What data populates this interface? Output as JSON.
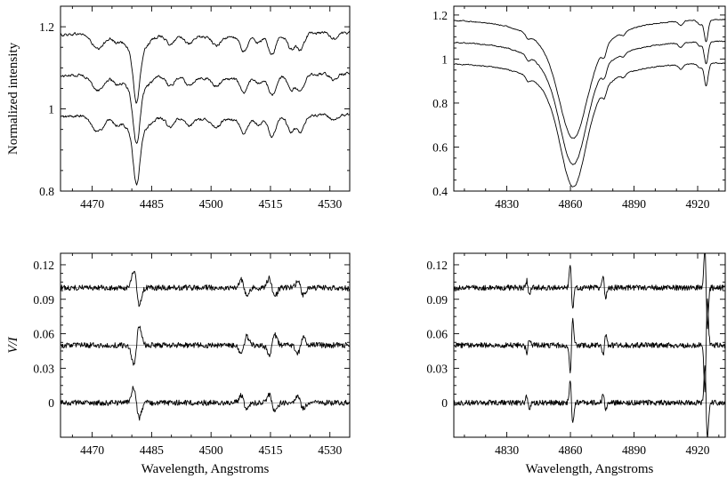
{
  "chart_data": [
    {
      "type": "line",
      "panel": "top-left",
      "xlabel": "",
      "ylabel": "Normalized intensity",
      "xlim": [
        4462,
        4535
      ],
      "ylim": [
        0.8,
        1.25
      ],
      "xticks": [
        4470,
        4485,
        4500,
        4515,
        4530
      ],
      "yticks": [
        0.8,
        1,
        1.2
      ],
      "xtick_labels": [
        "4470",
        "4485",
        "4500",
        "4515",
        "4530"
      ],
      "ytick_labels": [
        "0.8",
        "1",
        "1.2"
      ],
      "offsets": [
        1.18,
        1.08,
        0.98
      ],
      "continuum_slope": 0.006,
      "noise": 0.006,
      "lines": [
        {
          "c": 4481.2,
          "d": 0.12,
          "w": 0.8
        },
        {
          "c": 4481.2,
          "d": 0.05,
          "w": 2.6
        },
        {
          "c": 4471.5,
          "d": 0.04,
          "w": 1.6
        },
        {
          "c": 4476.0,
          "d": 0.018,
          "w": 1.0
        },
        {
          "c": 4489.7,
          "d": 0.025,
          "w": 1.0
        },
        {
          "c": 4494.5,
          "d": 0.02,
          "w": 1.0
        },
        {
          "c": 4501.3,
          "d": 0.02,
          "w": 1.0
        },
        {
          "c": 4508.3,
          "d": 0.035,
          "w": 0.9
        },
        {
          "c": 4512.0,
          "d": 0.015,
          "w": 0.8
        },
        {
          "c": 4515.4,
          "d": 0.045,
          "w": 0.9
        },
        {
          "c": 4520.2,
          "d": 0.035,
          "w": 0.9
        },
        {
          "c": 4522.6,
          "d": 0.04,
          "w": 0.9
        },
        {
          "c": 4531.0,
          "d": 0.015,
          "w": 0.9
        }
      ]
    },
    {
      "type": "line",
      "panel": "top-right",
      "xlabel": "",
      "ylabel": "",
      "xlim": [
        4805,
        4933
      ],
      "ylim": [
        0.4,
        1.24
      ],
      "xticks": [
        4830,
        4860,
        4890,
        4920
      ],
      "yticks": [
        0.4,
        0.6,
        0.8,
        1,
        1.2
      ],
      "xtick_labels": [
        "4830",
        "4860",
        "4890",
        "4920"
      ],
      "ytick_labels": [
        "0.4",
        "0.6",
        "0.8",
        "1",
        "1.2"
      ],
      "offsets": [
        1.19,
        1.09,
        0.99
      ],
      "hbeta": {
        "center": 4861.3,
        "depths": [
          0.55,
          0.57,
          0.57
        ],
        "half_widths": [
          12,
          11.5,
          11
        ]
      },
      "noise": 0.004,
      "lines": [
        {
          "c": 4924.0,
          "d": 0.1,
          "w": 0.9
        },
        {
          "c": 4840.0,
          "d": 0.02,
          "w": 1.0
        },
        {
          "c": 4876.0,
          "d": 0.04,
          "w": 1.0
        },
        {
          "c": 4885.0,
          "d": 0.015,
          "w": 1.0
        },
        {
          "c": 4912.0,
          "d": 0.02,
          "w": 1.0
        },
        {
          "c": 4921.0,
          "d": 0.02,
          "w": 1.0
        }
      ]
    },
    {
      "type": "line",
      "panel": "bottom-left",
      "xlabel": "Wavelength, Angstroms",
      "ylabel": "V/I",
      "xlim": [
        4462,
        4535
      ],
      "ylim": [
        -0.03,
        0.13
      ],
      "xticks": [
        4470,
        4485,
        4500,
        4515,
        4530
      ],
      "yticks": [
        0,
        0.03,
        0.06,
        0.09,
        0.12
      ],
      "xtick_labels": [
        "4470",
        "4485",
        "4500",
        "4515",
        "4530"
      ],
      "ytick_labels": [
        "0",
        "0.03",
        "0.06",
        "0.09",
        "0.12"
      ],
      "offsets": [
        0.1,
        0.05,
        0.0
      ],
      "noise": 0.0015,
      "features": [
        {
          "c": 4481.2,
          "a": 0.015,
          "w": 0.7
        },
        {
          "c": 4508.3,
          "a": 0.007,
          "w": 0.7
        },
        {
          "c": 4515.4,
          "a": 0.008,
          "w": 0.7
        },
        {
          "c": 4522.6,
          "a": 0.006,
          "w": 0.7
        }
      ]
    },
    {
      "type": "line",
      "panel": "bottom-right",
      "xlabel": "Wavelength, Angstroms",
      "ylabel": "",
      "xlim": [
        4805,
        4933
      ],
      "ylim": [
        -0.03,
        0.13
      ],
      "xticks": [
        4830,
        4860,
        4890,
        4920
      ],
      "yticks": [
        0,
        0.03,
        0.06,
        0.09,
        0.12
      ],
      "xtick_labels": [
        "4830",
        "4860",
        "4890",
        "4920"
      ],
      "ytick_labels": [
        "0",
        "0.03",
        "0.06",
        "0.09",
        "0.12"
      ],
      "offsets": [
        0.1,
        0.05,
        0.0
      ],
      "noise": 0.0015,
      "features": [
        {
          "c": 4860.5,
          "a": 0.02,
          "w": 0.6
        },
        {
          "c": 4876.0,
          "a": 0.008,
          "w": 0.6
        },
        {
          "c": 4924.0,
          "a": 0.035,
          "w": 0.6
        },
        {
          "c": 4840.0,
          "a": 0.006,
          "w": 0.6
        }
      ]
    }
  ]
}
